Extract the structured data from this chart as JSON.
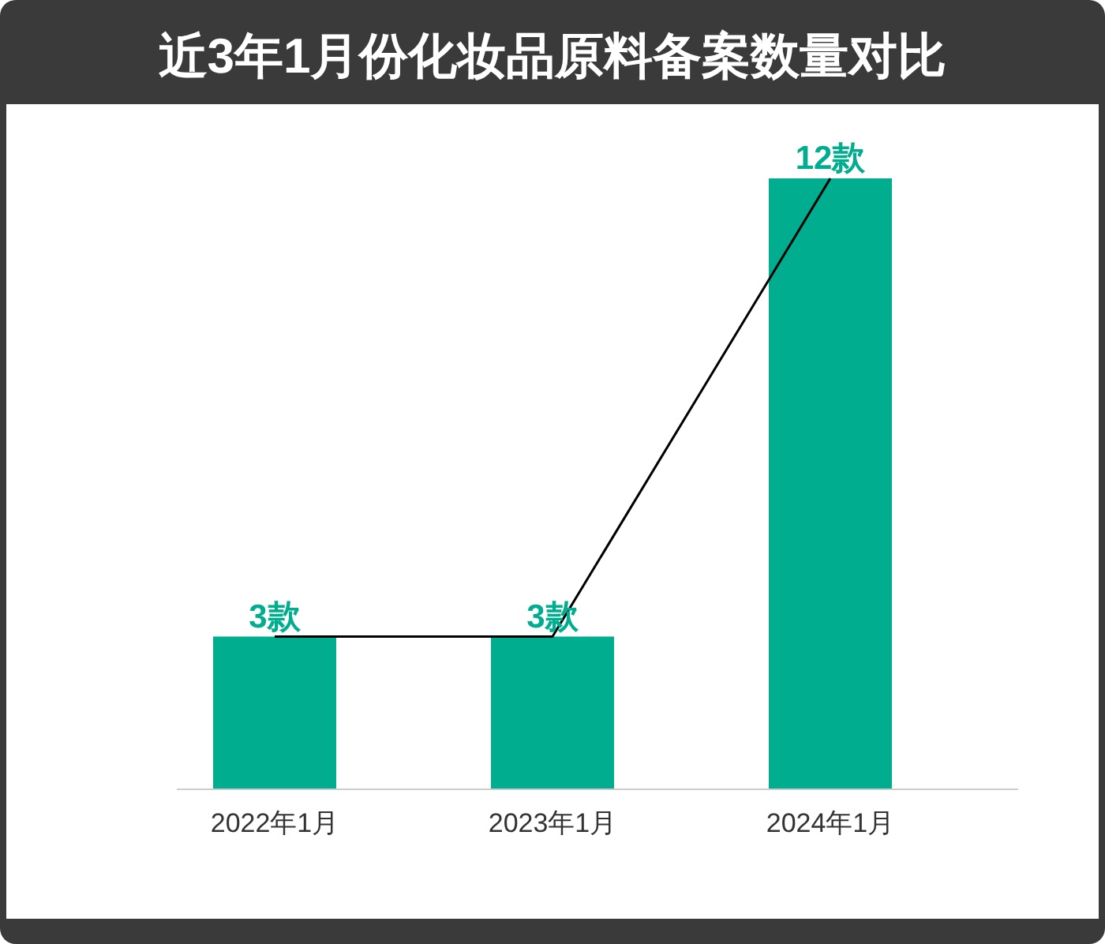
{
  "chart_data": {
    "type": "bar",
    "title": "近3年1月份化妆品原料备案数量对比",
    "categories": [
      "2022年1月",
      "2023年1月",
      "2024年1月"
    ],
    "series": [
      {
        "color": "#00ad8e",
        "values": [
          3,
          3,
          12
        ],
        "value_labels": [
          "3款",
          "3款",
          "12款"
        ]
      },
      {
        "type": "line",
        "color": "#000000",
        "values": [
          3,
          3,
          12
        ]
      }
    ]
  }
}
